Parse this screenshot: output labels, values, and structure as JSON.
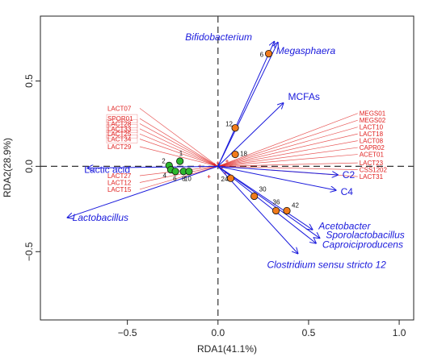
{
  "chart_data": {
    "type": "scatter",
    "xlabel": "RDA1(41.1%)",
    "ylabel": "RDA2(28.9%)",
    "xlim": [
      -0.98,
      1.08
    ],
    "ylim": [
      -0.9,
      0.88
    ],
    "xticks": [
      -0.5,
      0.0,
      0.5,
      1.0
    ],
    "yticks": [
      -0.5,
      0.0,
      0.5
    ],
    "tick_labels_x": [
      "−0.5",
      "0.0",
      "0.5",
      "1.0"
    ],
    "tick_labels_y": [
      "−0.5",
      "0.0",
      "0.5"
    ],
    "grid": false,
    "sites_group_a": [
      {
        "label": "1",
        "x": -0.21,
        "y": 0.03,
        "color": "#2db82d"
      },
      {
        "label": "2",
        "x": -0.27,
        "y": 0.005,
        "color": "#2db82d"
      },
      {
        "label": "4",
        "x": -0.26,
        "y": -0.02,
        "color": "#2db82d"
      },
      {
        "label": "6",
        "x": -0.235,
        "y": -0.03,
        "color": "#2db82d"
      },
      {
        "label": "8",
        "x": -0.19,
        "y": -0.03,
        "color": "#2db82d"
      },
      {
        "label": "10",
        "x": -0.16,
        "y": -0.03,
        "color": "#2db82d"
      }
    ],
    "sites_group_b": [
      {
        "label": "6",
        "x": 0.28,
        "y": 0.66,
        "color": "#f07a1a"
      },
      {
        "label": "12",
        "x": 0.095,
        "y": 0.225,
        "color": "#f07a1a"
      },
      {
        "label": "18",
        "x": 0.095,
        "y": 0.07,
        "color": "#f07a1a"
      },
      {
        "label": "24",
        "x": 0.07,
        "y": -0.07,
        "color": "#f07a1a"
      },
      {
        "label": "30",
        "x": 0.2,
        "y": -0.175,
        "color": "#f07a1a"
      },
      {
        "label": "36",
        "x": 0.32,
        "y": -0.26,
        "color": "#f07a1a"
      },
      {
        "label": "42",
        "x": 0.38,
        "y": -0.26,
        "color": "#f07a1a"
      }
    ],
    "env_vectors": [
      {
        "name": "Bifidobacterium",
        "x": 0.31,
        "y": 0.73,
        "italic": true
      },
      {
        "name": "Megasphaera",
        "x": 0.33,
        "y": 0.725,
        "italic": true
      },
      {
        "name": "MCFAs",
        "x": 0.36,
        "y": 0.37,
        "italic": false
      },
      {
        "name": "C2",
        "x": 0.66,
        "y": -0.05,
        "italic": false
      },
      {
        "name": "C4",
        "x": 0.65,
        "y": -0.14,
        "italic": false
      },
      {
        "name": "Lactic acid",
        "x": -0.72,
        "y": -0.01,
        "italic": false
      },
      {
        "name": "Lactobacillus",
        "x": -0.83,
        "y": -0.3,
        "italic": true
      },
      {
        "name": "Acetobacter",
        "x": 0.52,
        "y": -0.37,
        "italic": true
      },
      {
        "name": "Sporolactobacillus",
        "x": 0.56,
        "y": -0.42,
        "italic": true
      },
      {
        "name": "Caproiciproducens",
        "x": 0.54,
        "y": -0.45,
        "italic": true
      },
      {
        "name": "Clostridium sensu stricto 12",
        "x": 0.44,
        "y": -0.51,
        "italic": true
      }
    ],
    "species": [
      {
        "name": "LACT07",
        "x": -0.61,
        "y": 0.34
      },
      {
        "name": "SPOR01",
        "x": -0.61,
        "y": 0.28
      },
      {
        "name": "LACT28",
        "x": -0.61,
        "y": 0.25
      },
      {
        "name": "LACT33",
        "x": -0.61,
        "y": 0.22
      },
      {
        "name": "LACT25",
        "x": -0.61,
        "y": 0.19
      },
      {
        "name": "LACT34",
        "x": -0.61,
        "y": 0.16
      },
      {
        "name": "LACT29",
        "x": -0.61,
        "y": 0.115
      },
      {
        "name": "LACT27",
        "x": -0.61,
        "y": -0.055
      },
      {
        "name": "LACT12",
        "x": -0.61,
        "y": -0.095
      },
      {
        "name": "LACT15",
        "x": -0.61,
        "y": -0.135
      },
      {
        "name": "MEGS01",
        "x": 0.78,
        "y": 0.31
      },
      {
        "name": "MEGS02",
        "x": 0.78,
        "y": 0.27
      },
      {
        "name": "LACT10",
        "x": 0.78,
        "y": 0.23
      },
      {
        "name": "LACT18",
        "x": 0.78,
        "y": 0.19
      },
      {
        "name": "LACT08",
        "x": 0.78,
        "y": 0.15
      },
      {
        "name": "CAPR02",
        "x": 0.78,
        "y": 0.11
      },
      {
        "name": "ACET01",
        "x": 0.78,
        "y": 0.07
      },
      {
        "name": "LACT23",
        "x": 0.78,
        "y": 0.02
      },
      {
        "name": "CSS1202",
        "x": 0.78,
        "y": -0.02
      },
      {
        "name": "LACT31",
        "x": 0.78,
        "y": -0.06
      }
    ],
    "boxed_species": [
      "SPOR01",
      "LACT28",
      "LACT33",
      "LACT25",
      "LACT34"
    ],
    "colors": {
      "env_arrow": "#1a1adc",
      "species_line": "#e0201f",
      "zero_lines": "#333333"
    }
  }
}
